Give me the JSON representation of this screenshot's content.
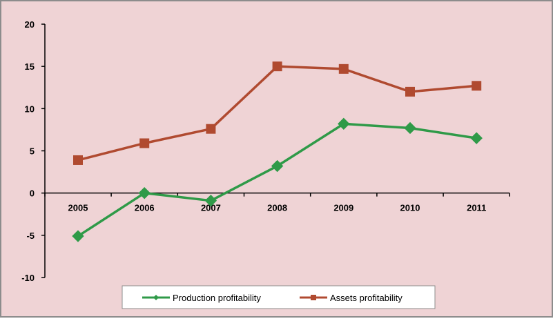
{
  "colors": {
    "background": "#efd3d5",
    "border": "#8c8c8c",
    "axis": "#000000",
    "legend_bg": "#ffffff"
  },
  "chart_data": {
    "type": "line",
    "title": "",
    "xlabel": "",
    "ylabel": "",
    "categories": [
      "2005",
      "2006",
      "2007",
      "2008",
      "2009",
      "2010",
      "2011"
    ],
    "ylim": [
      -10,
      20
    ],
    "yticks": [
      -10,
      -5,
      0,
      5,
      10,
      15,
      20
    ],
    "ytick_labels": [
      "-10",
      "-5",
      "0",
      "5",
      "10",
      "15",
      "20"
    ],
    "grid": false,
    "legend_position": "bottom",
    "series": [
      {
        "name": "Production profitability",
        "color": "#2f9a48",
        "marker": "diamond",
        "values": [
          -5.1,
          0,
          -0.9,
          3.2,
          8.2,
          7.7,
          6.5
        ]
      },
      {
        "name": "Assets profitability",
        "color": "#b04a30",
        "marker": "square",
        "values": [
          3.9,
          5.9,
          7.6,
          15.0,
          14.7,
          12.0,
          12.7
        ]
      }
    ]
  }
}
